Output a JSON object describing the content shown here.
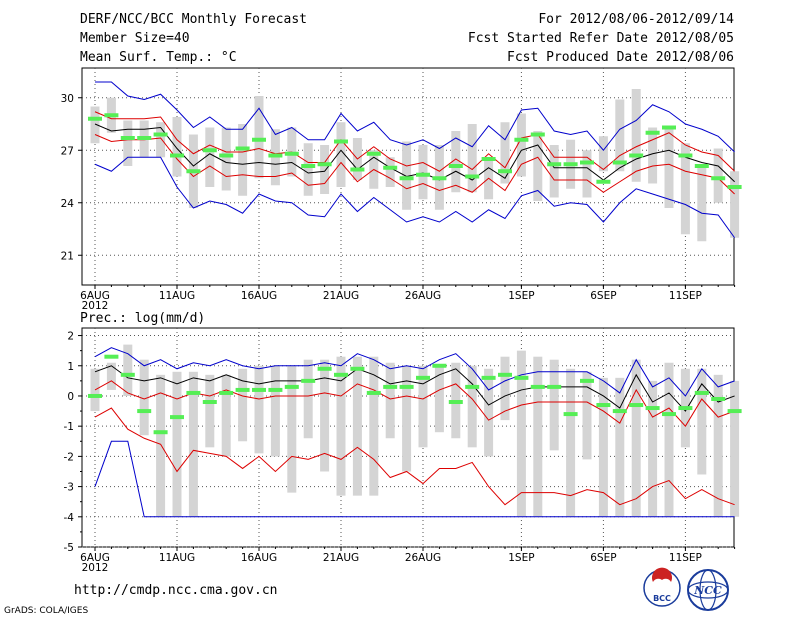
{
  "header": {
    "left": [
      "DERF/NCC/BCC Monthly Forecast",
      "Member Size=40",
      "Mean Surf. Temp.: °C"
    ],
    "right": [
      "For 2012/08/06-2012/09/14",
      "Fcst Started Refer Date 2012/08/05",
      "Fcst Produced Date 2012/08/06"
    ]
  },
  "footer": {
    "url": "http://cmdp.ncc.cma.gov.cn",
    "grads": "GrADS: COLA/IGES",
    "logo_left": "BCC",
    "logo_right": "NCC"
  },
  "colors": {
    "box": "#d4d4d4",
    "mean": "#000000",
    "band": "#dd0000",
    "envelope": "#0000cc",
    "obs": "#55ee55",
    "grid": "#555555"
  },
  "chart_data": [
    {
      "type": "box",
      "title": "Mean Surf. Temp.: °C",
      "ylabel": "°C",
      "ylim": [
        19.3,
        31.7
      ],
      "yticks": [
        21,
        24,
        27,
        30
      ],
      "xticks": [
        {
          "day": 0,
          "label": "6AUG",
          "sub": "2012"
        },
        {
          "day": 5,
          "label": "11AUG"
        },
        {
          "day": 10,
          "label": "16AUG"
        },
        {
          "day": 15,
          "label": "21AUG"
        },
        {
          "day": 20,
          "label": "26AUG"
        },
        {
          "day": 26,
          "label": "1SEP"
        },
        {
          "day": 31,
          "label": "6SEP"
        },
        {
          "day": 36,
          "label": "11SEP"
        }
      ],
      "days": 40,
      "box_low": [
        27.4,
        28.0,
        26.1,
        26.6,
        26.6,
        25.5,
        23.7,
        24.9,
        24.7,
        24.4,
        25.4,
        25.0,
        25.5,
        24.4,
        24.5,
        24.9,
        25.3,
        24.8,
        24.9,
        23.6,
        24.2,
        23.6,
        24.6,
        24.6,
        24.2,
        25.1,
        25.5,
        24.1,
        24.3,
        24.8,
        24.3,
        25.8,
        25.8,
        25.2,
        25.1,
        23.7,
        22.2,
        21.8,
        24.0,
        22.0
      ],
      "box_high": [
        29.5,
        30.0,
        28.7,
        28.7,
        28.6,
        28.9,
        27.9,
        28.3,
        28.3,
        28.5,
        30.1,
        28.2,
        28.3,
        27.4,
        27.3,
        28.6,
        27.7,
        27.0,
        26.6,
        27.5,
        27.3,
        27.3,
        28.1,
        28.5,
        26.4,
        28.6,
        29.1,
        28.1,
        27.3,
        27.6,
        27.0,
        27.8,
        29.9,
        30.5,
        28.3,
        28.3,
        27.4,
        26.0,
        27.1,
        25.8
      ],
      "mean": [
        28.5,
        28.1,
        28.2,
        28.2,
        28.3,
        27.1,
        26.1,
        26.8,
        26.3,
        26.2,
        26.3,
        26.2,
        26.3,
        25.7,
        25.8,
        27.0,
        25.9,
        26.6,
        26.0,
        25.5,
        25.7,
        25.3,
        25.8,
        25.3,
        26.0,
        25.4,
        27.0,
        27.3,
        26.0,
        26.0,
        26.0,
        25.3,
        26.0,
        26.5,
        26.8,
        27.0,
        26.6,
        26.3,
        26.1,
        25.2
      ],
      "red_upper": [
        29.2,
        28.8,
        28.8,
        28.8,
        28.9,
        27.6,
        26.8,
        27.3,
        26.9,
        26.9,
        27.1,
        26.8,
        26.9,
        26.3,
        26.3,
        27.6,
        26.5,
        27.2,
        26.5,
        26.1,
        26.3,
        25.8,
        26.5,
        25.9,
        26.8,
        26.0,
        27.7,
        27.9,
        26.6,
        26.6,
        26.6,
        25.9,
        26.7,
        27.2,
        27.6,
        28.0,
        27.3,
        26.9,
        26.7,
        25.8
      ],
      "red_lower": [
        27.9,
        27.5,
        27.6,
        27.6,
        27.7,
        26.5,
        25.5,
        26.1,
        25.5,
        25.6,
        25.5,
        25.5,
        25.7,
        25.0,
        25.1,
        26.3,
        25.2,
        25.9,
        25.4,
        24.8,
        25.1,
        24.7,
        25.0,
        24.6,
        25.4,
        24.7,
        26.2,
        26.6,
        25.3,
        25.3,
        25.3,
        24.6,
        25.2,
        25.8,
        26.1,
        26.2,
        25.8,
        25.6,
        25.4,
        24.5
      ],
      "blue_upper": [
        30.9,
        30.9,
        30.1,
        29.9,
        30.2,
        29.3,
        28.3,
        28.9,
        28.2,
        28.2,
        29.4,
        27.9,
        28.3,
        27.6,
        27.6,
        29.1,
        28.1,
        28.6,
        27.6,
        27.3,
        27.6,
        27.1,
        27.7,
        27.2,
        28.4,
        27.6,
        29.3,
        29.4,
        28.1,
        27.9,
        28.1,
        27.0,
        28.2,
        28.7,
        29.6,
        29.2,
        28.5,
        28.2,
        27.8,
        26.9
      ],
      "blue_lower": [
        26.2,
        25.8,
        26.6,
        26.6,
        26.6,
        24.9,
        23.7,
        24.1,
        23.9,
        23.4,
        24.5,
        24.1,
        24.0,
        23.3,
        23.2,
        24.5,
        23.5,
        24.3,
        23.6,
        22.9,
        23.2,
        22.9,
        23.5,
        22.9,
        23.6,
        23.1,
        24.4,
        24.7,
        23.8,
        24.0,
        23.9,
        22.9,
        24.0,
        24.8,
        24.5,
        24.2,
        23.9,
        23.4,
        23.3,
        22.0
      ],
      "obs": [
        28.8,
        29.0,
        27.7,
        27.7,
        27.9,
        26.7,
        25.8,
        27.0,
        26.7,
        27.1,
        27.6,
        26.7,
        26.8,
        26.1,
        26.2,
        27.5,
        25.9,
        26.8,
        26.0,
        25.4,
        25.6,
        25.4,
        26.1,
        25.5,
        26.5,
        25.8,
        27.6,
        27.9,
        26.2,
        26.2,
        26.3,
        25.2,
        26.3,
        26.7,
        28.0,
        28.3,
        26.7,
        26.1,
        25.4,
        24.9
      ],
      "series": [
        {
          "name": "Ensemble mean",
          "color": "#000000"
        },
        {
          "name": "Spread band",
          "color": "#dd0000"
        },
        {
          "name": "Envelope",
          "color": "#0000cc"
        },
        {
          "name": "Observation",
          "color": "#55ee55"
        }
      ]
    },
    {
      "type": "box",
      "title": "Prec.: log(mm/d)",
      "ylabel": "log(mm/d)",
      "ylim": [
        -5,
        2.25
      ],
      "yticks": [
        -5,
        -4,
        -3,
        -2,
        -1,
        0,
        1,
        2
      ],
      "xticks": [
        {
          "day": 0,
          "label": "6AUG",
          "sub": "2012"
        },
        {
          "day": 5,
          "label": "11AUG"
        },
        {
          "day": 10,
          "label": "16AUG"
        },
        {
          "day": 15,
          "label": "21AUG"
        },
        {
          "day": 20,
          "label": "26AUG"
        },
        {
          "day": 26,
          "label": "1SEP"
        },
        {
          "day": 31,
          "label": "6SEP"
        },
        {
          "day": 36,
          "label": "11SEP"
        }
      ],
      "days": 40,
      "box_low": [
        -0.5,
        0.2,
        0.0,
        -1.3,
        -4.0,
        -4.0,
        -4.0,
        -1.7,
        -2.0,
        -1.5,
        -1.9,
        -2.0,
        -3.2,
        -1.4,
        -2.5,
        -3.3,
        -3.3,
        -3.3,
        -1.4,
        -2.5,
        -1.7,
        -1.2,
        -1.4,
        -1.7,
        -2.0,
        -0.8,
        -4.0,
        -4.0,
        -1.8,
        -4.0,
        -2.1,
        -4.0,
        -4.0,
        -4.0,
        -4.0,
        -4.0,
        -1.7,
        -2.6,
        -4.0,
        -4.0
      ],
      "box_high": [
        0.9,
        1.1,
        1.7,
        1.2,
        0.7,
        0.8,
        0.8,
        0.7,
        0.7,
        0.9,
        1.0,
        1.0,
        1.0,
        1.2,
        1.2,
        1.3,
        1.3,
        1.3,
        1.1,
        1.0,
        1.0,
        1.0,
        1.1,
        1.0,
        0.9,
        1.3,
        1.5,
        1.3,
        1.2,
        0.9,
        0.8,
        0.6,
        0.6,
        1.2,
        0.5,
        1.1,
        0.9,
        0.9,
        0.7,
        0.5
      ],
      "mean": [
        0.8,
        1.0,
        0.6,
        0.5,
        0.6,
        0.4,
        0.6,
        0.5,
        0.7,
        0.5,
        0.4,
        0.5,
        0.5,
        0.5,
        0.6,
        0.5,
        0.9,
        0.7,
        0.4,
        0.5,
        0.4,
        0.7,
        0.9,
        0.4,
        -0.3,
        0.0,
        0.2,
        0.3,
        0.3,
        0.3,
        0.3,
        0.0,
        -0.4,
        0.7,
        -0.2,
        0.1,
        -0.5,
        0.4,
        -0.2,
        0.0
      ],
      "red_upper": [
        0.2,
        0.5,
        0.1,
        -0.1,
        0.1,
        -0.1,
        0.1,
        0.0,
        0.2,
        0.0,
        -0.1,
        0.0,
        0.0,
        0.0,
        0.1,
        0.0,
        0.4,
        0.2,
        -0.1,
        0.0,
        -0.1,
        0.2,
        0.4,
        -0.1,
        -0.8,
        -0.5,
        -0.3,
        -0.2,
        -0.2,
        -0.2,
        -0.2,
        -0.5,
        -0.9,
        0.2,
        -0.7,
        -0.4,
        -1.0,
        -0.1,
        -0.7,
        -0.5
      ],
      "red_lower": [
        -0.7,
        -0.4,
        -1.1,
        -1.4,
        -1.6,
        -2.5,
        -1.8,
        -1.9,
        -2.0,
        -2.4,
        -2.0,
        -2.5,
        -2.0,
        -2.1,
        -1.9,
        -2.1,
        -1.7,
        -2.1,
        -2.7,
        -2.5,
        -2.9,
        -2.4,
        -2.4,
        -2.2,
        -3.0,
        -3.6,
        -3.2,
        -3.2,
        -3.2,
        -3.3,
        -3.1,
        -3.2,
        -3.6,
        -3.4,
        -3.0,
        -2.8,
        -3.4,
        -3.1,
        -3.4,
        -3.6
      ],
      "blue_upper": [
        1.3,
        1.6,
        1.4,
        1.0,
        1.2,
        0.9,
        1.1,
        1.0,
        1.2,
        1.0,
        0.9,
        1.0,
        1.0,
        1.0,
        1.1,
        1.0,
        1.4,
        1.2,
        0.9,
        1.0,
        0.9,
        1.2,
        1.4,
        0.9,
        0.2,
        0.5,
        0.7,
        0.8,
        0.8,
        0.8,
        0.8,
        0.5,
        0.1,
        1.2,
        0.3,
        0.6,
        0.0,
        0.9,
        0.3,
        0.5
      ],
      "blue_lower": [
        -3.0,
        -1.5,
        -1.5,
        -4.0,
        -4.0,
        -4.0,
        -4.0,
        -4.0,
        -4.0,
        -4.0,
        -4.0,
        -4.0,
        -4.0,
        -4.0,
        -4.0,
        -4.0,
        -4.0,
        -4.0,
        -4.0,
        -4.0,
        -4.0,
        -4.0,
        -4.0,
        -4.0,
        -4.0,
        -4.0,
        -4.0,
        -4.0,
        -4.0,
        -4.0,
        -4.0,
        -4.0,
        -4.0,
        -4.0,
        -4.0,
        -4.0,
        -4.0,
        -4.0,
        -4.0,
        -4.0
      ],
      "obs": [
        0.0,
        1.3,
        0.7,
        -0.5,
        -1.2,
        -0.7,
        0.1,
        -0.2,
        0.1,
        0.2,
        0.2,
        0.2,
        0.3,
        0.5,
        0.9,
        0.7,
        0.9,
        0.1,
        0.3,
        0.3,
        0.6,
        1.0,
        -0.2,
        0.3,
        0.6,
        0.7,
        0.6,
        0.3,
        0.3,
        -0.6,
        0.5,
        -0.3,
        -0.5,
        -0.3,
        -0.4,
        -0.6,
        -0.4,
        0.1,
        -0.1,
        -0.5
      ],
      "series": [
        {
          "name": "Ensemble mean",
          "color": "#000000"
        },
        {
          "name": "Spread band",
          "color": "#dd0000"
        },
        {
          "name": "Envelope",
          "color": "#0000cc"
        },
        {
          "name": "Observation",
          "color": "#55ee55"
        }
      ]
    }
  ]
}
